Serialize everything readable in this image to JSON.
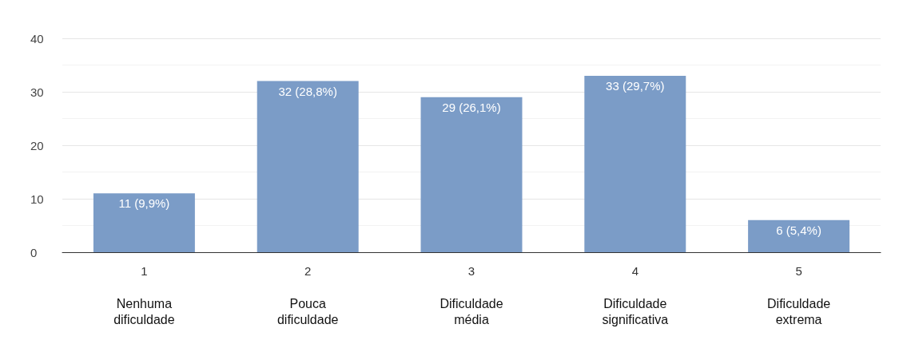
{
  "chart_data": {
    "type": "bar",
    "categories": [
      "1",
      "2",
      "3",
      "4",
      "5"
    ],
    "values": [
      11,
      32,
      29,
      33,
      6
    ],
    "value_labels": [
      "11 (9,9%)",
      "32 (28,8%)",
      "29 (26,1%)",
      "33 (29,7%)",
      "6 (5,4%)"
    ],
    "color": "#7b9cc7",
    "ylim": [
      0,
      40
    ],
    "yticks": [
      0,
      10,
      20,
      30,
      40
    ],
    "grid": true,
    "annotations": [
      "Nenhuma\ndificuldade",
      "Pouca\ndificuldade",
      "Dificuldade\nmédia",
      "Dificuldade\nsignificativa",
      "Dificuldade\nextrema"
    ]
  }
}
